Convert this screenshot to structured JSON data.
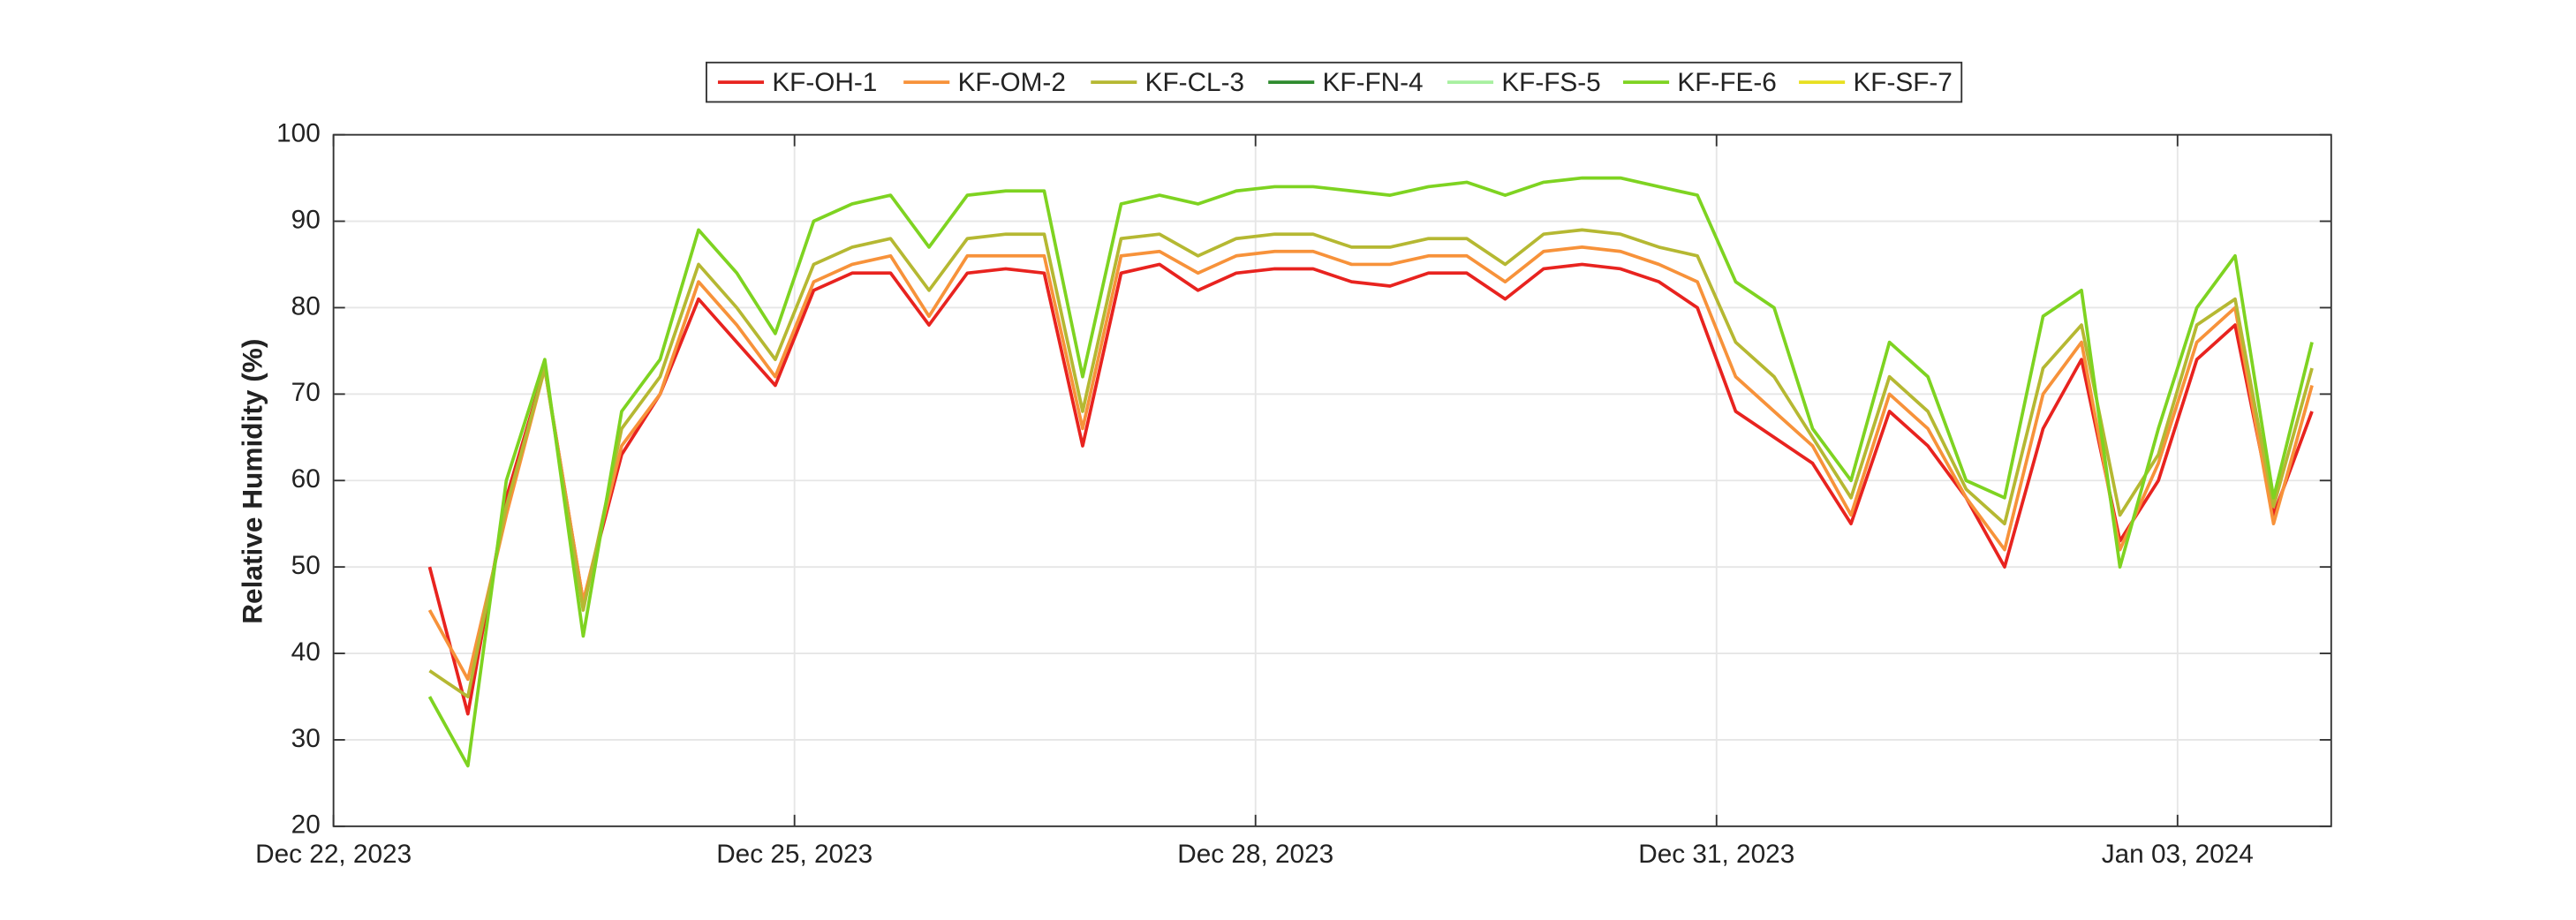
{
  "chart_data": {
    "type": "line",
    "y_label": "Relative Humidity (%)",
    "x": [
      "2023-12-22T15:00",
      "2023-12-22T21:00",
      "2023-12-23T03:00",
      "2023-12-23T09:00",
      "2023-12-23T15:00",
      "2023-12-23T21:00",
      "2023-12-24T03:00",
      "2023-12-24T09:00",
      "2023-12-24T15:00",
      "2023-12-24T21:00",
      "2023-12-25T03:00",
      "2023-12-25T09:00",
      "2023-12-25T15:00",
      "2023-12-25T21:00",
      "2023-12-26T03:00",
      "2023-12-26T09:00",
      "2023-12-26T15:00",
      "2023-12-26T21:00",
      "2023-12-27T03:00",
      "2023-12-27T09:00",
      "2023-12-27T15:00",
      "2023-12-27T21:00",
      "2023-12-28T03:00",
      "2023-12-28T09:00",
      "2023-12-28T15:00",
      "2023-12-28T21:00",
      "2023-12-29T03:00",
      "2023-12-29T09:00",
      "2023-12-29T15:00",
      "2023-12-29T21:00",
      "2023-12-30T03:00",
      "2023-12-30T09:00",
      "2023-12-30T15:00",
      "2023-12-30T21:00",
      "2023-12-31T03:00",
      "2023-12-31T09:00",
      "2023-12-31T15:00",
      "2023-12-31T21:00",
      "2024-01-01T03:00",
      "2024-01-01T09:00",
      "2024-01-01T15:00",
      "2024-01-01T21:00",
      "2024-01-02T03:00",
      "2024-01-02T09:00",
      "2024-01-02T15:00",
      "2024-01-02T21:00",
      "2024-01-03T03:00",
      "2024-01-03T09:00",
      "2024-01-03T15:00",
      "2024-01-03T21:00"
    ],
    "series": [
      {
        "name": "KF-OH-1",
        "color": "#e8231f",
        "values": [
          50,
          33,
          58,
          73,
          46,
          63,
          70,
          81,
          76,
          71,
          82,
          84,
          84,
          78,
          84,
          84.5,
          84,
          64,
          84,
          85,
          82,
          84,
          84.5,
          84.5,
          83,
          82.5,
          84,
          84,
          81,
          84.5,
          85,
          84.5,
          83,
          80,
          68,
          65,
          62,
          55,
          68,
          64,
          58,
          50,
          66,
          74,
          53,
          60,
          74,
          78,
          56,
          68
        ]
      },
      {
        "name": "KF-OM-2",
        "color": "#f7923a",
        "values": [
          45,
          37,
          56,
          73,
          46,
          64,
          70,
          83,
          78,
          72,
          83,
          85,
          86,
          79,
          86,
          86,
          86,
          66,
          86,
          86.5,
          84,
          86,
          86.5,
          86.5,
          85,
          85,
          86,
          86,
          83,
          86.5,
          87,
          86.5,
          85,
          83,
          72,
          68,
          64,
          56,
          70,
          66,
          58,
          52,
          70,
          76,
          52,
          62,
          76,
          80,
          55,
          71
        ]
      },
      {
        "name": "KF-CL-3",
        "color": "#b5b832",
        "values": [
          38,
          35,
          57,
          73,
          45,
          66,
          72,
          85,
          80,
          74,
          85,
          87,
          88,
          82,
          88,
          88.5,
          88.5,
          68,
          88,
          88.5,
          86,
          88,
          88.5,
          88.5,
          87,
          87,
          88,
          88,
          85,
          88.5,
          89,
          88.5,
          87,
          86,
          76,
          72,
          65,
          58,
          72,
          68,
          59,
          55,
          73,
          78,
          56,
          63,
          78,
          81,
          57,
          73
        ]
      },
      {
        "name": "KF-FN-4",
        "color": "#2e8b2e",
        "values": [
          null,
          null,
          null,
          null,
          null,
          null,
          null,
          null,
          null,
          null,
          null,
          null,
          null,
          null,
          null,
          null,
          null,
          null,
          null,
          null,
          null,
          null,
          null,
          null,
          null,
          null,
          null,
          null,
          null,
          null,
          null,
          null,
          null,
          null,
          null,
          null,
          null,
          null,
          null,
          null,
          null,
          null,
          null,
          null,
          null,
          null,
          null,
          null,
          null,
          null
        ]
      },
      {
        "name": "KF-FS-5",
        "color": "#a8f0a0",
        "values": [
          null,
          null,
          null,
          null,
          null,
          null,
          null,
          null,
          null,
          null,
          null,
          null,
          null,
          null,
          null,
          null,
          null,
          null,
          null,
          null,
          null,
          null,
          null,
          null,
          null,
          null,
          null,
          null,
          null,
          null,
          null,
          null,
          null,
          null,
          null,
          null,
          null,
          null,
          null,
          null,
          null,
          null,
          null,
          null,
          null,
          null,
          null,
          null,
          null,
          null
        ]
      },
      {
        "name": "KF-FE-6",
        "color": "#7ed321",
        "values": [
          35,
          27,
          60,
          74,
          42,
          68,
          74,
          89,
          84,
          77,
          90,
          92,
          93,
          87,
          93,
          93.5,
          93.5,
          72,
          92,
          93,
          92,
          93.5,
          94,
          94,
          93.5,
          93,
          94,
          94.5,
          93,
          94.5,
          95,
          95,
          94,
          93,
          83,
          80,
          66,
          60,
          76,
          72,
          60,
          58,
          79,
          82,
          50,
          66,
          80,
          86,
          58,
          76
        ]
      },
      {
        "name": "KF-SF-7",
        "color": "#e8e020",
        "values": [
          null,
          null,
          null,
          null,
          null,
          null,
          null,
          null,
          null,
          null,
          null,
          null,
          null,
          null,
          null,
          null,
          null,
          null,
          null,
          null,
          null,
          null,
          null,
          null,
          null,
          null,
          null,
          null,
          null,
          null,
          null,
          null,
          null,
          null,
          null,
          null,
          null,
          null,
          null,
          null,
          null,
          null,
          null,
          null,
          null,
          null,
          null,
          null,
          null,
          null
        ]
      }
    ],
    "xlim": [
      "2023-12-22",
      "2024-01-04"
    ],
    "xticks": [
      {
        "value": "2023-12-22",
        "label": "Dec 22, 2023"
      },
      {
        "value": "2023-12-25",
        "label": "Dec 25, 2023"
      },
      {
        "value": "2023-12-28",
        "label": "Dec 28, 2023"
      },
      {
        "value": "2023-12-31",
        "label": "Dec 31, 2023"
      },
      {
        "value": "2024-01-03",
        "label": "Jan 03, 2024"
      }
    ],
    "ylim": [
      20,
      100
    ],
    "yticks": [
      20,
      30,
      40,
      50,
      60,
      70,
      80,
      90,
      100
    ],
    "grid": true,
    "legend": "top"
  }
}
